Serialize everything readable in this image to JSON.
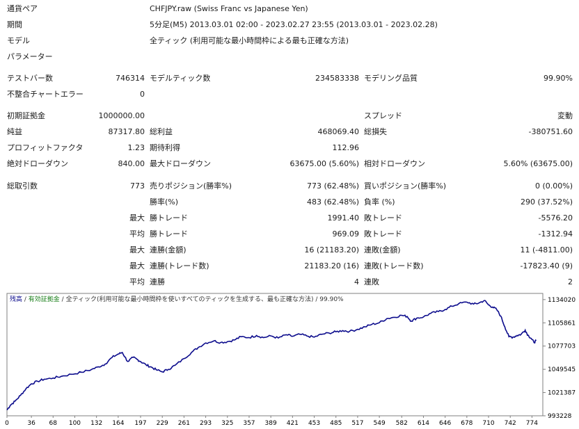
{
  "header": [
    {
      "label": "通貨ペア",
      "value": "CHFJPY.raw (Swiss Franc vs Japanese Yen)"
    },
    {
      "label": "期間",
      "value": "5分足(M5) 2013.03.01 02:00 - 2023.02.27 23:55 (2013.03.01 - 2023.02.28)"
    },
    {
      "label": "モデル",
      "value": "全ティック (利用可能な最小時間枠による最も正確な方法)"
    },
    {
      "label": "パラメーター",
      "value": ""
    }
  ],
  "stats": {
    "bars_label": "テストバー数",
    "bars_value": "746314",
    "ticks_label": "モデルティック数",
    "ticks_value": "234583338",
    "quality_label": "モデリング品質",
    "quality_value": "99.90%",
    "mismatch_label": "不整合チャートエラー",
    "mismatch_value": "0",
    "deposit_label": "初期証拠金",
    "deposit_value": "1000000.00",
    "spread_label": "スプレッド",
    "spread_value": "変動",
    "net_label": "純益",
    "net_value": "87317.80",
    "gross_profit_label": "総利益",
    "gross_profit_value": "468069.40",
    "gross_loss_label": "総損失",
    "gross_loss_value": "-380751.60",
    "pf_label": "プロフィットファクタ",
    "pf_value": "1.23",
    "expected_label": "期待利得",
    "expected_value": "112.96",
    "abs_dd_label": "絶対ドローダウン",
    "abs_dd_value": "840.00",
    "max_dd_label": "最大ドローダウン",
    "max_dd_value": "63675.00 (5.60%)",
    "rel_dd_label": "相対ドローダウン",
    "rel_dd_value": "5.60% (63675.00)",
    "total_trades_label": "総取引数",
    "total_trades_value": "773",
    "short_label": "売りポジション(勝率%)",
    "short_value": "773 (62.48%)",
    "long_label": "買いポジション(勝率%)",
    "long_value": "0 (0.00%)",
    "win_label": "勝率(%)",
    "win_value": "483 (62.48%)",
    "loss_label": "負率 (%)",
    "loss_value": "290 (37.52%)",
    "max_prefix": "最大",
    "avg_prefix": "平均",
    "largest_win_label": "勝トレード",
    "largest_win_value": "1991.40",
    "largest_loss_label": "敗トレード",
    "largest_loss_value": "-5576.20",
    "avg_win_label": "勝トレード",
    "avg_win_value": "969.09",
    "avg_loss_label": "敗トレード",
    "avg_loss_value": "-1312.94",
    "cons_wins_money_label": "連勝(金額)",
    "cons_wins_money_value": "16 (21183.20)",
    "cons_losses_money_label": "連敗(金額)",
    "cons_losses_money_value": "11 (-4811.00)",
    "cons_wins_count_label": "連勝(トレード数)",
    "cons_wins_count_value": "21183.20 (16)",
    "cons_losses_count_label": "連敗(トレード数)",
    "cons_losses_count_value": "-17823.40 (9)",
    "avg_cons_wins_label": "連勝",
    "avg_cons_wins_value": "4",
    "avg_cons_losses_label": "連敗",
    "avg_cons_losses_value": "2"
  },
  "legend": {
    "balance": "残高",
    "sep1": " / ",
    "equity": "有効証拠金",
    "sep2": " / ",
    "model": "全ティック(利用可能な最小時間枠を使いすべてのティックを生成する、最も正確な方法)",
    "sep3": " / ",
    "quality": "99.90%"
  },
  "colors": {
    "line": "#0b0b8c",
    "equity_legend": "#1a7f1a",
    "border": "#7f7f7f"
  },
  "chart_data": {
    "type": "line",
    "x_ticks": [
      "0",
      "36",
      "68",
      "100",
      "132",
      "164",
      "197",
      "229",
      "261",
      "293",
      "325",
      "357",
      "389",
      "421",
      "453",
      "485",
      "517",
      "549",
      "582",
      "614",
      "646",
      "678",
      "710",
      "742",
      "774"
    ],
    "y_ticks": [
      "1134020",
      "1105861",
      "1077703",
      "1049545",
      "1021387",
      "993228"
    ],
    "xlim": [
      0,
      790
    ],
    "ylim": [
      993228,
      1141500
    ],
    "series": [
      {
        "values": [
          [
            0,
            1000300
          ],
          [
            5,
            1006000
          ],
          [
            12,
            1011000
          ],
          [
            20,
            1018000
          ],
          [
            28,
            1026000
          ],
          [
            36,
            1032000
          ],
          [
            45,
            1035000
          ],
          [
            55,
            1037500
          ],
          [
            68,
            1039000
          ],
          [
            80,
            1041000
          ],
          [
            95,
            1043500
          ],
          [
            110,
            1046000
          ],
          [
            125,
            1049500
          ],
          [
            135,
            1052500
          ],
          [
            145,
            1056000
          ],
          [
            155,
            1064000
          ],
          [
            164,
            1068000
          ],
          [
            170,
            1070000
          ],
          [
            178,
            1059000
          ],
          [
            186,
            1064000
          ],
          [
            192,
            1061500
          ],
          [
            197,
            1059000
          ],
          [
            205,
            1055000
          ],
          [
            212,
            1052500
          ],
          [
            220,
            1049000
          ],
          [
            229,
            1046500
          ],
          [
            238,
            1049500
          ],
          [
            248,
            1054500
          ],
          [
            261,
            1062500
          ],
          [
            272,
            1070000
          ],
          [
            282,
            1076000
          ],
          [
            293,
            1081500
          ],
          [
            305,
            1084000
          ],
          [
            315,
            1082000
          ],
          [
            325,
            1083000
          ],
          [
            335,
            1085000
          ],
          [
            345,
            1089000
          ],
          [
            357,
            1088000
          ],
          [
            368,
            1090500
          ],
          [
            378,
            1088000
          ],
          [
            389,
            1090000
          ],
          [
            400,
            1087500
          ],
          [
            412,
            1091500
          ],
          [
            421,
            1089500
          ],
          [
            432,
            1092000
          ],
          [
            442,
            1090000
          ],
          [
            453,
            1088500
          ],
          [
            464,
            1092000
          ],
          [
            475,
            1093500
          ],
          [
            485,
            1095000
          ],
          [
            495,
            1096500
          ],
          [
            505,
            1095500
          ],
          [
            517,
            1098000
          ],
          [
            528,
            1101000
          ],
          [
            538,
            1104000
          ],
          [
            549,
            1106000
          ],
          [
            560,
            1111000
          ],
          [
            570,
            1112500
          ],
          [
            582,
            1115000
          ],
          [
            590,
            1113500
          ],
          [
            596,
            1108000
          ],
          [
            604,
            1111500
          ],
          [
            614,
            1113000
          ],
          [
            625,
            1117500
          ],
          [
            636,
            1119500
          ],
          [
            646,
            1122000
          ],
          [
            656,
            1126000
          ],
          [
            666,
            1129000
          ],
          [
            678,
            1131000
          ],
          [
            688,
            1128500
          ],
          [
            696,
            1130000
          ],
          [
            704,
            1133000
          ],
          [
            710,
            1127500
          ],
          [
            716,
            1125000
          ],
          [
            722,
            1122000
          ],
          [
            728,
            1114000
          ],
          [
            734,
            1101000
          ],
          [
            740,
            1089000
          ],
          [
            746,
            1088500
          ],
          [
            752,
            1090500
          ],
          [
            758,
            1092000
          ],
          [
            764,
            1097000
          ],
          [
            768,
            1091000
          ],
          [
            773,
            1087000
          ],
          [
            777,
            1082000
          ],
          [
            780,
            1084000
          ]
        ]
      }
    ]
  }
}
